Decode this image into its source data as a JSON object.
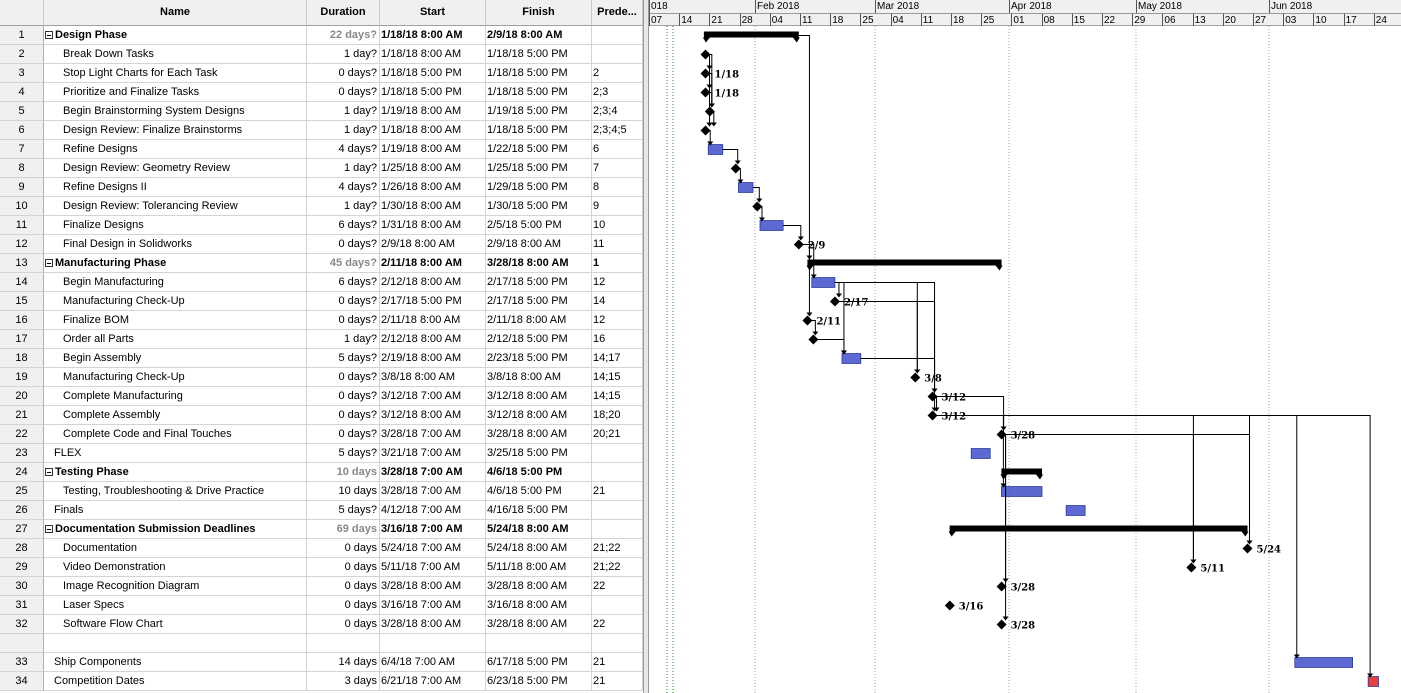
{
  "columns": {
    "id": "",
    "name": "Name",
    "duration": "Duration",
    "start": "Start",
    "finish": "Finish",
    "predecessors": "Prede..."
  },
  "rows": [
    {
      "id": "1",
      "name": "Design Phase",
      "duration": "22 days?",
      "start": "1/18/18 8:00 AM",
      "finish": "2/9/18 8:00 AM",
      "pred": "",
      "summary": true
    },
    {
      "id": "2",
      "name": "Break Down Tasks",
      "duration": "1 day?",
      "start": "1/18/18 8:00 AM",
      "finish": "1/18/18 5:00 PM",
      "pred": ""
    },
    {
      "id": "3",
      "name": "Stop Light Charts for Each Task",
      "duration": "0 days?",
      "start": "1/18/18 5:00 PM",
      "finish": "1/18/18 5:00 PM",
      "pred": "2"
    },
    {
      "id": "4",
      "name": "Prioritize and Finalize Tasks",
      "duration": "0 days?",
      "start": "1/18/18 5:00 PM",
      "finish": "1/18/18 5:00 PM",
      "pred": "2;3"
    },
    {
      "id": "5",
      "name": "Begin Brainstorming System Designs",
      "duration": "1 day?",
      "start": "1/19/18 8:00 AM",
      "finish": "1/19/18 5:00 PM",
      "pred": "2;3;4"
    },
    {
      "id": "6",
      "name": "Design Review: Finalize Brainstorms",
      "duration": "1 day?",
      "start": "1/18/18 8:00 AM",
      "finish": "1/18/18 5:00 PM",
      "pred": "2;3;4;5"
    },
    {
      "id": "7",
      "name": "Refine Designs",
      "duration": "4 days?",
      "start": "1/19/18 8:00 AM",
      "finish": "1/22/18 5:00 PM",
      "pred": "6"
    },
    {
      "id": "8",
      "name": "Design Review: Geometry Review",
      "duration": "1 day?",
      "start": "1/25/18 8:00 AM",
      "finish": "1/25/18 5:00 PM",
      "pred": "7"
    },
    {
      "id": "9",
      "name": "Refine Designs II",
      "duration": "4 days?",
      "start": "1/26/18 8:00 AM",
      "finish": "1/29/18 5:00 PM",
      "pred": "8"
    },
    {
      "id": "10",
      "name": "Design Review: Tolerancing Review",
      "duration": "1 day?",
      "start": "1/30/18 8:00 AM",
      "finish": "1/30/18 5:00 PM",
      "pred": "9"
    },
    {
      "id": "11",
      "name": "Finalize Designs",
      "duration": "6 days?",
      "start": "1/31/18 8:00 AM",
      "finish": "2/5/18 5:00 PM",
      "pred": "10"
    },
    {
      "id": "12",
      "name": "Final Design in Solidworks",
      "duration": "0 days?",
      "start": "2/9/18 8:00 AM",
      "finish": "2/9/18 8:00 AM",
      "pred": "11"
    },
    {
      "id": "13",
      "name": "Manufacturing Phase",
      "duration": "45 days?",
      "start": "2/11/18 8:00 AM",
      "finish": "3/28/18 8:00 AM",
      "pred": "1",
      "summary": true
    },
    {
      "id": "14",
      "name": "Begin Manufacturing",
      "duration": "6 days?",
      "start": "2/12/18 8:00 AM",
      "finish": "2/17/18 5:00 PM",
      "pred": "12"
    },
    {
      "id": "15",
      "name": "Manufacturing Check-Up",
      "duration": "0 days?",
      "start": "2/17/18 5:00 PM",
      "finish": "2/17/18 5:00 PM",
      "pred": "14"
    },
    {
      "id": "16",
      "name": "Finalize BOM",
      "duration": "0 days?",
      "start": "2/11/18 8:00 AM",
      "finish": "2/11/18 8:00 AM",
      "pred": "12"
    },
    {
      "id": "17",
      "name": "Order all Parts",
      "duration": "1 day?",
      "start": "2/12/18 8:00 AM",
      "finish": "2/12/18 5:00 PM",
      "pred": "16"
    },
    {
      "id": "18",
      "name": "Begin Assembly",
      "duration": "5 days?",
      "start": "2/19/18 8:00 AM",
      "finish": "2/23/18 5:00 PM",
      "pred": "14;17"
    },
    {
      "id": "19",
      "name": "Manufacturing Check-Up",
      "duration": "0 days?",
      "start": "3/8/18 8:00 AM",
      "finish": "3/8/18 8:00 AM",
      "pred": "14;15"
    },
    {
      "id": "20",
      "name": "Complete Manufacturing",
      "duration": "0 days?",
      "start": "3/12/18 7:00 AM",
      "finish": "3/12/18 8:00 AM",
      "pred": "14;15"
    },
    {
      "id": "21",
      "name": "Complete Assembly",
      "duration": "0 days?",
      "start": "3/12/18 8:00 AM",
      "finish": "3/12/18 8:00 AM",
      "pred": "18;20"
    },
    {
      "id": "22",
      "name": "Complete Code and Final Touches",
      "duration": "0 days?",
      "start": "3/28/18 7:00 AM",
      "finish": "3/28/18 8:00 AM",
      "pred": "20;21"
    },
    {
      "id": "23",
      "name": "FLEX",
      "duration": "5 days?",
      "start": "3/21/18 7:00 AM",
      "finish": "3/25/18 5:00 PM",
      "pred": "",
      "level": 0
    },
    {
      "id": "24",
      "name": "Testing Phase",
      "duration": "10 days",
      "start": "3/28/18 7:00 AM",
      "finish": "4/6/18 5:00 PM",
      "pred": "",
      "summary": true
    },
    {
      "id": "25",
      "name": "Testing, Troubleshooting & Drive Practice",
      "duration": "10 days",
      "start": "3/28/18 7:00 AM",
      "finish": "4/6/18 5:00 PM",
      "pred": "21"
    },
    {
      "id": "26",
      "name": "Finals",
      "duration": "5 days?",
      "start": "4/12/18 7:00 AM",
      "finish": "4/16/18 5:00 PM",
      "pred": "",
      "level": 0
    },
    {
      "id": "27",
      "name": "Documentation Submission Deadlines",
      "duration": "69 days",
      "start": "3/16/18 7:00 AM",
      "finish": "5/24/18 8:00 AM",
      "pred": "",
      "summary": true
    },
    {
      "id": "28",
      "name": "Documentation",
      "duration": "0 days",
      "start": "5/24/18 7:00 AM",
      "finish": "5/24/18 8:00 AM",
      "pred": "21;22"
    },
    {
      "id": "29",
      "name": "Video Demonstration",
      "duration": "0 days",
      "start": "5/11/18 7:00 AM",
      "finish": "5/11/18 8:00 AM",
      "pred": "21;22"
    },
    {
      "id": "30",
      "name": "Image Recognition Diagram",
      "duration": "0 days",
      "start": "3/28/18 8:00 AM",
      "finish": "3/28/18 8:00 AM",
      "pred": "22"
    },
    {
      "id": "31",
      "name": "Laser Specs",
      "duration": "0 days",
      "start": "3/16/18 7:00 AM",
      "finish": "3/16/18 8:00 AM",
      "pred": ""
    },
    {
      "id": "32",
      "name": "Software Flow Chart",
      "duration": "0 days",
      "start": "3/28/18 8:00 AM",
      "finish": "3/28/18 8:00 AM",
      "pred": "22"
    },
    {
      "id": "",
      "name": "",
      "duration": "",
      "start": "",
      "finish": "",
      "pred": "",
      "blank": true
    },
    {
      "id": "33",
      "name": "Ship Components",
      "duration": "14 days",
      "start": "6/4/18 7:00 AM",
      "finish": "6/17/18 5:00 PM",
      "pred": "21",
      "level": 0
    },
    {
      "id": "34",
      "name": "Competition Dates",
      "duration": "3 days",
      "start": "6/21/18 7:00 AM",
      "finish": "6/23/18 5:00 PM",
      "pred": "21",
      "level": 0
    }
  ],
  "timescale": {
    "months": [
      "018",
      "Feb 2018",
      "Mar 2018",
      "Apr 2018",
      "May 2018",
      "Jun 2018"
    ],
    "weeks": [
      "07",
      "14",
      "21",
      "28",
      "04",
      "11",
      "18",
      "25",
      "04",
      "11",
      "18",
      "25",
      "01",
      "08",
      "15",
      "22",
      "29",
      "06",
      "13",
      "20",
      "27",
      "03",
      "10",
      "17",
      "24"
    ]
  },
  "milestone_labels": [
    "1/18",
    "1/18",
    "2/9",
    "2/17",
    "2/11",
    "3/8",
    "3/12",
    "3/12",
    "3/28",
    "5/24",
    "5/11",
    "3/28",
    "3/16",
    "3/28"
  ],
  "colors": {
    "task_bar": "#3f4fc8",
    "summary_bar": "#000000",
    "critical_task": "#e02020",
    "grid": "#d4d4d4",
    "header_bg": "#f0f0f0"
  }
}
